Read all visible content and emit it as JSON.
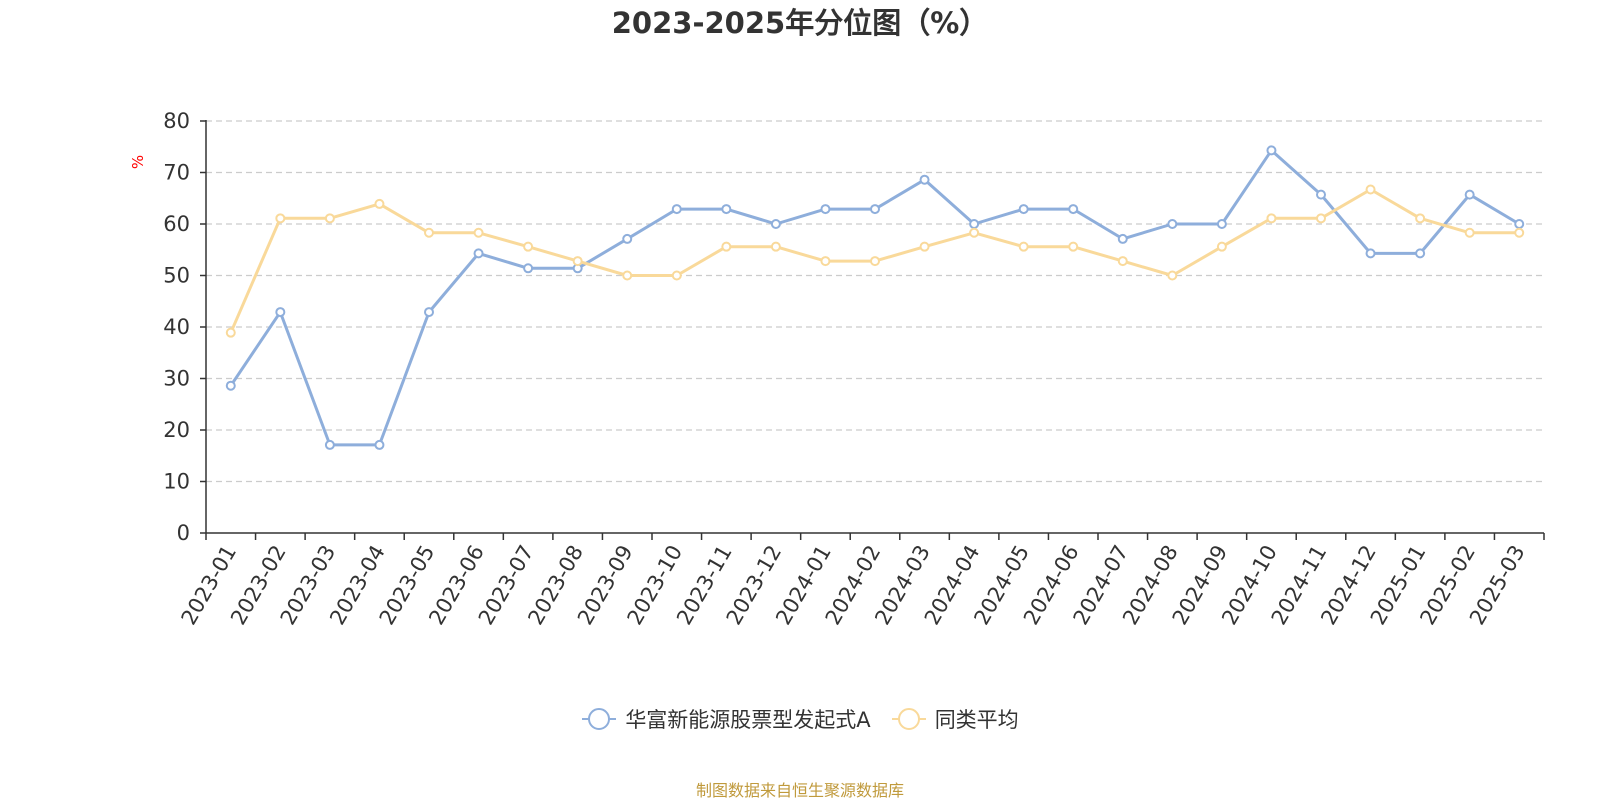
{
  "chart_data": {
    "type": "line",
    "title": "2023-2025年分位图（%）",
    "ylabel": "%",
    "xlabel": "",
    "ylim": [
      0,
      80
    ],
    "yticks": [
      0,
      10,
      20,
      30,
      40,
      50,
      60,
      70,
      80
    ],
    "grid": "horizontal dashed",
    "legend_position": "bottom-center",
    "categories": [
      "2023-01",
      "2023-02",
      "2023-03",
      "2023-04",
      "2023-05",
      "2023-06",
      "2023-07",
      "2023-08",
      "2023-09",
      "2023-10",
      "2023-11",
      "2023-12",
      "2024-01",
      "2024-02",
      "2024-03",
      "2024-04",
      "2024-05",
      "2024-06",
      "2024-07",
      "2024-08",
      "2024-09",
      "2024-10",
      "2024-11",
      "2024-12",
      "2025-01",
      "2025-02",
      "2025-03"
    ],
    "series": [
      {
        "name": "华富新能源股票型发起式A",
        "color": "#8eaedb",
        "values": [
          28.6,
          42.9,
          17.1,
          17.1,
          42.9,
          54.3,
          51.4,
          51.4,
          57.1,
          62.9,
          62.9,
          60.0,
          62.9,
          62.9,
          68.6,
          60.0,
          62.9,
          62.9,
          57.1,
          60.0,
          60.0,
          74.3,
          65.7,
          54.3,
          54.3,
          65.7,
          60.0
        ]
      },
      {
        "name": "同类平均",
        "color": "#f9d99a",
        "values": [
          38.9,
          61.1,
          61.1,
          63.9,
          58.3,
          58.3,
          55.6,
          52.8,
          50.0,
          50.0,
          55.6,
          55.6,
          52.8,
          52.8,
          55.6,
          58.3,
          55.6,
          55.6,
          52.8,
          50.0,
          55.6,
          61.1,
          61.1,
          66.7,
          61.1,
          58.3,
          58.3
        ]
      }
    ]
  },
  "footer": {
    "source": "制图数据来自恒生聚源数据库"
  }
}
